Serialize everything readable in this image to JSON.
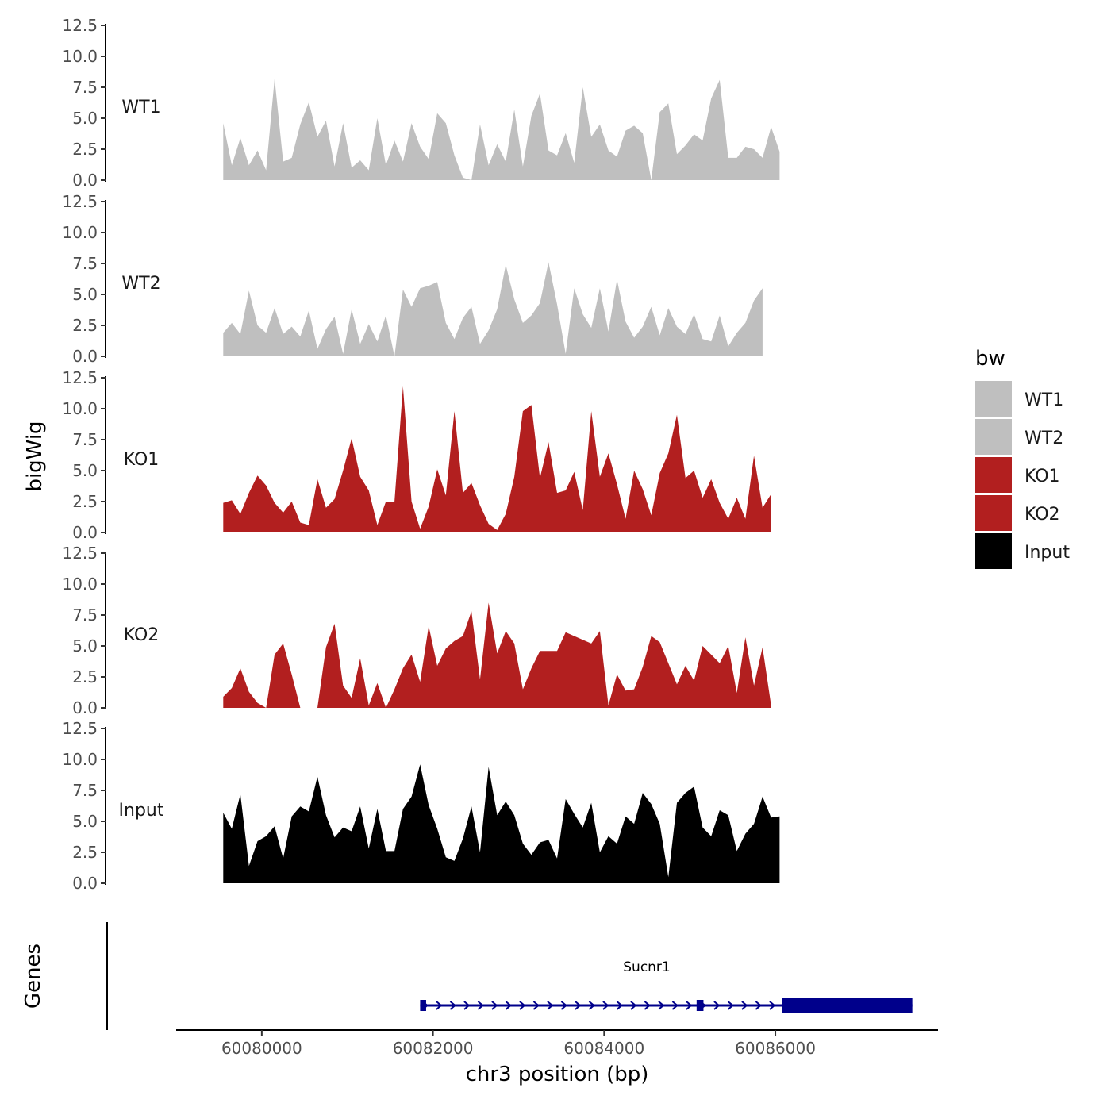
{
  "chart_data": {
    "type": "area",
    "title": "",
    "ylabel": "bigWig",
    "xlabel": "chr3 position (bp)",
    "xlim": [
      60079000,
      60087900
    ],
    "ylim": [
      0,
      12.5
    ],
    "y_ticks": [
      "0.0",
      "2.5",
      "5.0",
      "7.5",
      "10.0",
      "12.5"
    ],
    "x_ticks": [
      {
        "value": 60080000,
        "label": "60080000"
      },
      {
        "value": 60082000,
        "label": "60082000"
      },
      {
        "value": 60084000,
        "label": "60084000"
      },
      {
        "value": 60086000,
        "label": "60086000"
      }
    ],
    "legend": {
      "title": "bw",
      "position": "right",
      "entries": [
        {
          "label": "WT1",
          "color": "#bfbfbf"
        },
        {
          "label": "WT2",
          "color": "#bfbfbf"
        },
        {
          "label": "KO1",
          "color": "#b21f1f"
        },
        {
          "label": "KO2",
          "color": "#b21f1f"
        },
        {
          "label": "Input",
          "color": "#000000"
        }
      ]
    },
    "x_start": 60079550,
    "x_step": 100,
    "series": [
      {
        "name": "WT1",
        "color": "#bfbfbf",
        "values": [
          4.6,
          1.2,
          3.4,
          1.2,
          2.4,
          0.8,
          8.2,
          1.5,
          1.8,
          4.5,
          6.3,
          3.5,
          4.8,
          1.1,
          4.6,
          1.0,
          1.6,
          0.8,
          5.0,
          1.2,
          3.2,
          1.5,
          4.6,
          2.7,
          1.7,
          5.4,
          4.6,
          2.0,
          0.2,
          0.0,
          4.5,
          1.2,
          2.9,
          1.5,
          5.7,
          1.1,
          5.2,
          7.0,
          2.4,
          2.0,
          3.8,
          1.4,
          7.5,
          3.5,
          4.5,
          2.4,
          1.9,
          4.0,
          4.4,
          3.8,
          0.0,
          5.5,
          6.2,
          2.1,
          2.8,
          3.7,
          3.2,
          6.6,
          8.1,
          1.8,
          1.8,
          2.7,
          2.5,
          1.8,
          4.3,
          2.3
        ]
      },
      {
        "name": "WT2",
        "color": "#bfbfbf",
        "values": [
          1.9,
          2.7,
          1.8,
          5.3,
          2.5,
          1.9,
          3.9,
          1.8,
          2.4,
          1.6,
          3.7,
          0.6,
          2.2,
          3.2,
          0.2,
          3.8,
          1.0,
          2.6,
          1.2,
          3.3,
          0.0,
          5.4,
          4.0,
          5.5,
          5.7,
          6.0,
          2.7,
          1.4,
          3.1,
          4.0,
          1.0,
          2.1,
          3.8,
          7.4,
          4.6,
          2.7,
          3.3,
          4.3,
          7.6,
          4.2,
          0.2,
          5.5,
          3.4,
          2.3,
          5.5,
          2.0,
          6.2,
          2.8,
          1.5,
          2.4,
          4.0,
          1.7,
          3.9,
          2.4,
          1.8,
          3.4,
          1.4,
          1.2,
          3.3,
          0.8,
          1.9,
          2.7,
          4.5,
          5.5
        ]
      },
      {
        "name": "KO1",
        "color": "#b21f1f",
        "values": [
          2.4,
          2.6,
          1.5,
          3.2,
          4.6,
          3.8,
          2.4,
          1.6,
          2.5,
          0.8,
          0.6,
          4.3,
          2.0,
          2.7,
          5.0,
          7.6,
          4.5,
          3.4,
          0.6,
          2.5,
          2.5,
          11.8,
          2.5,
          0.3,
          2.1,
          5.1,
          3.0,
          9.8,
          3.2,
          4.0,
          2.2,
          0.7,
          0.2,
          1.5,
          4.5,
          9.8,
          10.3,
          4.4,
          7.3,
          3.2,
          3.4,
          4.9,
          1.8,
          9.8,
          4.5,
          6.4,
          3.9,
          1.1,
          5.0,
          3.5,
          1.4,
          4.8,
          6.4,
          9.5,
          4.4,
          5.0,
          2.8,
          4.3,
          2.4,
          1.1,
          2.8,
          1.1,
          6.2,
          2.0,
          3.1
        ]
      },
      {
        "name": "KO2",
        "color": "#b21f1f",
        "values": [
          0.9,
          1.6,
          3.2,
          1.3,
          0.4,
          0.0,
          4.3,
          5.2,
          2.7,
          0.0,
          0.0,
          0.0,
          4.9,
          6.8,
          1.8,
          0.8,
          4.0,
          0.2,
          2.0,
          0.0,
          1.5,
          3.2,
          4.3,
          2.1,
          6.6,
          3.4,
          4.8,
          5.4,
          5.8,
          7.8,
          2.3,
          8.5,
          4.4,
          6.2,
          5.2,
          1.5,
          3.2,
          4.6,
          4.6,
          4.6,
          6.1,
          5.8,
          5.5,
          5.2,
          6.2,
          0.2,
          2.7,
          1.4,
          1.5,
          3.3,
          5.8,
          5.3,
          3.6,
          1.9,
          3.4,
          2.2,
          5.0,
          4.3,
          3.6,
          5.0,
          1.2,
          5.7,
          1.8,
          4.9,
          0.2
        ]
      },
      {
        "name": "Input",
        "color": "#000000",
        "values": [
          5.7,
          4.4,
          7.2,
          1.4,
          3.4,
          3.8,
          4.6,
          2.0,
          5.4,
          6.2,
          5.8,
          8.6,
          5.5,
          3.7,
          4.5,
          4.2,
          6.2,
          2.8,
          6.0,
          2.6,
          2.6,
          6.0,
          7.0,
          9.6,
          6.3,
          4.4,
          2.1,
          1.8,
          3.6,
          6.2,
          2.5,
          9.4,
          5.5,
          6.6,
          5.5,
          3.2,
          2.3,
          3.3,
          3.5,
          2.0,
          6.8,
          5.6,
          4.5,
          6.5,
          2.5,
          3.8,
          3.2,
          5.4,
          4.8,
          7.3,
          6.4,
          4.8,
          0.5,
          6.5,
          7.3,
          7.8,
          4.5,
          3.8,
          5.9,
          5.5,
          2.6,
          4.0,
          4.8,
          7.0,
          5.3,
          5.4
        ]
      }
    ]
  },
  "genes": {
    "track_label": "Genes",
    "name": "Sucnr1",
    "strand": "+",
    "color": "#00008b",
    "start": 60081850,
    "end": 60087600,
    "exons": [
      {
        "start": 60081850,
        "end": 60081920,
        "type": "utr"
      },
      {
        "start": 60085080,
        "end": 60085160,
        "type": "utr"
      },
      {
        "start": 60086080,
        "end": 60086350,
        "type": "cds"
      },
      {
        "start": 60086350,
        "end": 60087600,
        "type": "cds"
      }
    ]
  }
}
